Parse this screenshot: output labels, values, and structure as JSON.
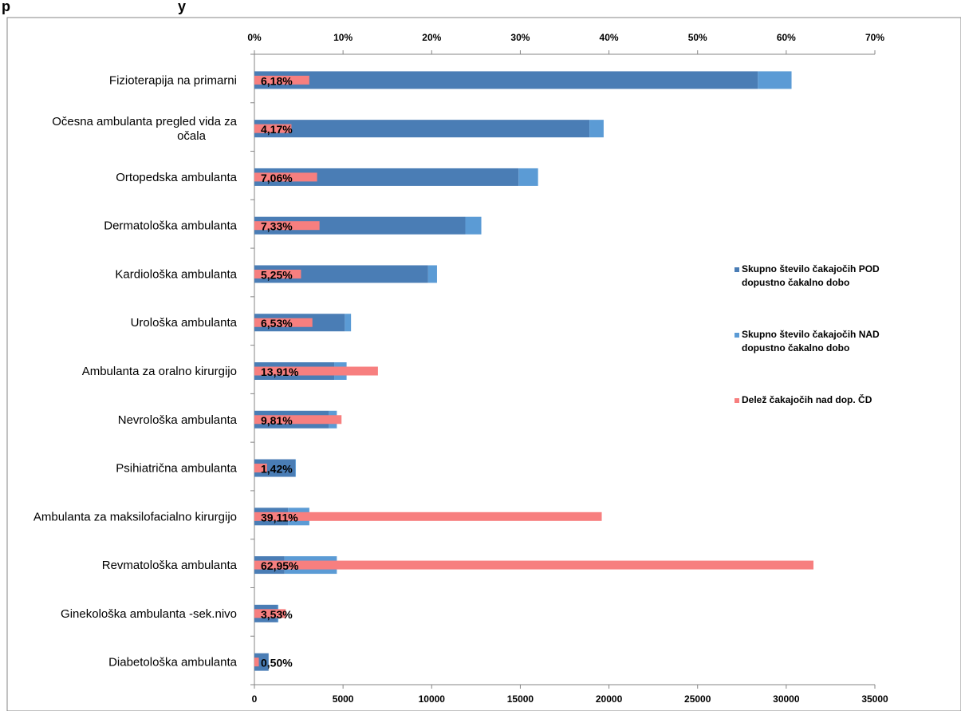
{
  "chart_data": {
    "type": "bar",
    "orientation": "horizontal",
    "title": "",
    "title_visible_fragment": "p                                          y",
    "categories": [
      "Fizioterapija na primarni",
      "Očesna ambulanta  pregled vida za očala",
      "Ortopedska ambulanta",
      "Dermatološka ambulanta",
      "Kardiološka ambulanta",
      "Urološka ambulanta",
      "Ambulanta za oralno kirurgijo",
      "Nevrološka ambulanta",
      "Psihiatrična ambulanta",
      "Ambulanta za maksilofacialno kirurgijo",
      "Revmatološka ambulanta",
      "Ginekološka ambulanta -sek.nivo",
      "Diabetološka ambulanta"
    ],
    "series": [
      {
        "name": "Skupno število čakajočih POD dopustno čakalno dobo",
        "axis": "bottom",
        "values": [
          28400,
          18900,
          14900,
          11900,
          9800,
          5100,
          4500,
          4200,
          2300,
          1900,
          1700,
          1300,
          800
        ]
      },
      {
        "name": "Skupno število čakajočih NAD dopustno čakalno dobo",
        "axis": "bottom",
        "values": [
          1900,
          800,
          1100,
          900,
          500,
          350,
          700,
          450,
          40,
          1200,
          2950,
          50,
          5
        ]
      },
      {
        "name": "Delež čakajočih nad dop. ČD",
        "axis": "top",
        "values": [
          6.18,
          4.17,
          7.06,
          7.33,
          5.25,
          6.53,
          13.91,
          9.81,
          1.42,
          39.11,
          62.95,
          3.53,
          0.5
        ]
      }
    ],
    "data_labels": [
      "6,18%",
      "4,17%",
      "7,06%",
      "7,33%",
      "5,25%",
      "6,53%",
      "13,91%",
      "9,81%",
      "1,42%",
      "39,11%",
      "62,95%",
      "3,53%",
      "0,50%"
    ],
    "x_bottom_ticks": [
      "0",
      "5000",
      "10000",
      "15000",
      "20000",
      "25000",
      "30000",
      "35000"
    ],
    "x_bottom_range": [
      0,
      35000
    ],
    "x_top_ticks": [
      "0%",
      "10%",
      "20%",
      "30%",
      "40%",
      "50%",
      "60%",
      "70%"
    ],
    "x_top_range": [
      0,
      125
    ],
    "xlabel": "",
    "ylabel": "",
    "grid": false,
    "legend_position": "right",
    "legend": [
      {
        "lines": [
          "Skupno število čakajočih POD",
          "dopustno čakalno dobo"
        ]
      },
      {
        "lines": [
          "Skupno število čakajočih NAD",
          "dopustno čakalno dobo"
        ]
      },
      {
        "lines": [
          "Delež čakajočih nad dop. ČD"
        ]
      }
    ],
    "colors": {
      "pod": "#4a7db5",
      "nad": "#5b9bd5",
      "delez": "#f77f7f",
      "axis": "#868686",
      "border": "#868686"
    }
  }
}
